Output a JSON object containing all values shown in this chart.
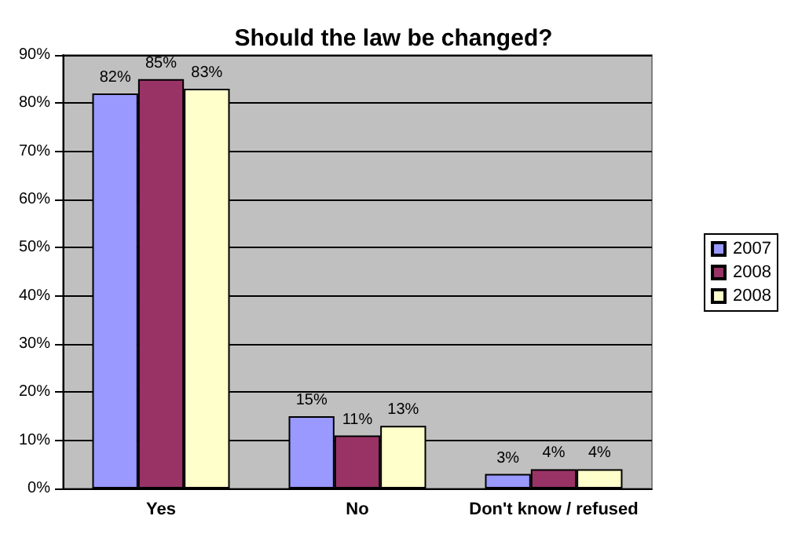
{
  "chart_data": {
    "type": "bar",
    "title": "Should the law be changed?",
    "categories": [
      "Yes",
      "No",
      "Don't know / refused"
    ],
    "series": [
      {
        "name": "2007",
        "color": "#9999ff",
        "values": [
          82,
          15,
          3
        ],
        "value_labels": [
          "82%",
          "15%",
          "3%"
        ]
      },
      {
        "name": "2008",
        "color": "#993366",
        "values": [
          85,
          11,
          4
        ],
        "value_labels": [
          "85%",
          "11%",
          "4%"
        ]
      },
      {
        "name": "2008",
        "color": "#ffffcc",
        "values": [
          83,
          13,
          4
        ],
        "value_labels": [
          "83%",
          "13%",
          "4%"
        ]
      }
    ],
    "ylim": [
      0,
      90
    ],
    "yticks": [
      {
        "value": 0,
        "label": "0%"
      },
      {
        "value": 10,
        "label": "10%"
      },
      {
        "value": 20,
        "label": "20%"
      },
      {
        "value": 30,
        "label": "30%"
      },
      {
        "value": 40,
        "label": "40%"
      },
      {
        "value": 50,
        "label": "50%"
      },
      {
        "value": 60,
        "label": "60%"
      },
      {
        "value": 70,
        "label": "70%"
      },
      {
        "value": 80,
        "label": "80%"
      },
      {
        "value": 90,
        "label": "90%"
      }
    ],
    "grid": "y",
    "legend": "right"
  }
}
